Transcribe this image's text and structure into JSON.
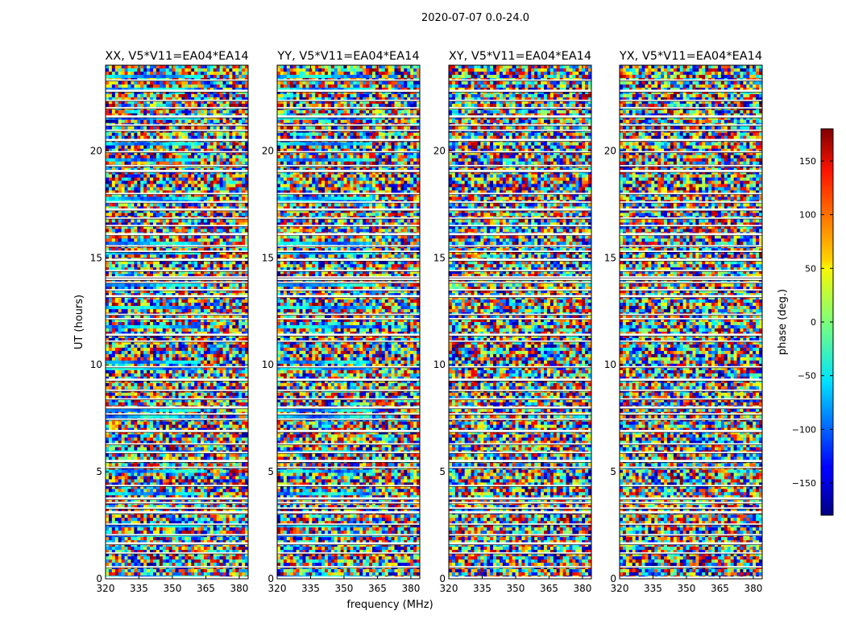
{
  "figure": {
    "suptitle": "2020-07-07 0.0-24.0",
    "xlabel": "frequency (MHz)",
    "ylabel": "UT (hours)"
  },
  "chart_data": {
    "type": "heatmap",
    "title": "2020-07-07 0.0-24.0",
    "xlabel": "frequency (MHz)",
    "ylabel": "UT (hours)",
    "xlim": [
      320,
      384
    ],
    "ylim": [
      0,
      24
    ],
    "x_ticks": [
      320,
      335,
      350,
      365,
      380
    ],
    "y_ticks": [
      0,
      5,
      10,
      15,
      20
    ],
    "grid": false,
    "colormap": "jet",
    "colorbar": {
      "label": "phase (deg.)",
      "range": [
        -180,
        180
      ],
      "ticks": [
        150,
        100,
        50,
        0,
        -50,
        -100,
        -150
      ],
      "tick_labels": [
        "150",
        "100",
        "50",
        "0",
        "−50",
        "−100",
        "−150"
      ]
    },
    "panels": [
      {
        "title": "XX, V5*V11=EA04*EA14",
        "polarization": "XX"
      },
      {
        "title": "YY, V5*V11=EA04*EA14",
        "polarization": "YY"
      },
      {
        "title": "XY, V5*V11=EA04*EA14",
        "polarization": "XY"
      },
      {
        "title": "YX, V5*V11=EA04*EA14",
        "polarization": "YX"
      }
    ],
    "flagged_ut_hours": [
      0.05,
      0.55,
      1.2,
      1.65,
      2.05,
      2.55,
      3.1,
      3.3,
      3.55,
      3.75,
      4.35,
      5.2,
      5.5,
      5.9,
      6.3,
      6.9,
      7.45,
      7.7,
      8.0,
      8.4,
      8.8,
      9.3,
      9.9,
      11.1,
      11.4,
      12.15,
      12.35,
      13.2,
      13.5,
      13.85,
      14.0,
      14.1,
      14.4,
      14.9,
      15.3,
      15.55,
      16.1,
      16.5,
      16.85,
      17.25,
      17.6,
      18.0,
      19.05,
      19.3,
      19.95,
      20.5,
      20.95,
      21.2,
      21.6,
      22.0,
      22.35,
      22.8,
      23.3
    ]
  }
}
